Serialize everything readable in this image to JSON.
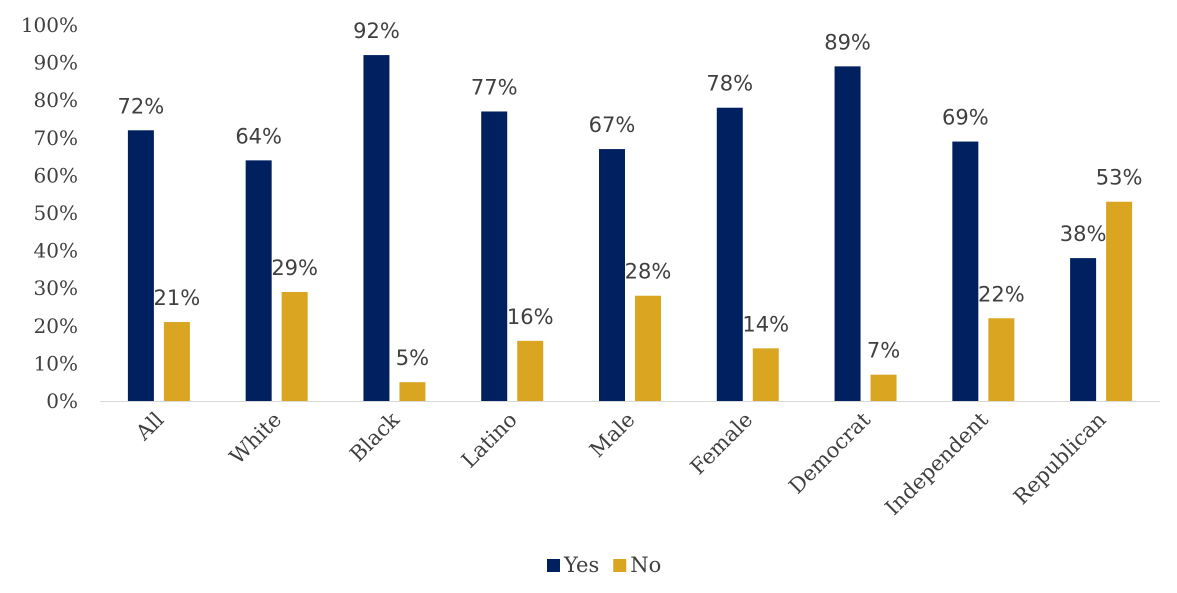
{
  "chart_data": {
    "type": "bar",
    "categories": [
      "All",
      "White",
      "Black",
      "Latino",
      "Male",
      "Female",
      "Democrat",
      "Independent",
      "Republican"
    ],
    "series": [
      {
        "name": "Yes",
        "color": "#002060",
        "values": [
          72,
          64,
          92,
          77,
          67,
          78,
          89,
          69,
          38
        ]
      },
      {
        "name": "No",
        "color": "#DAA520",
        "values": [
          21,
          29,
          5,
          16,
          28,
          14,
          7,
          22,
          53
        ]
      }
    ],
    "value_format": "percent",
    "ylim": [
      0,
      100
    ],
    "yticks": [
      "0%",
      "10%",
      "20%",
      "30%",
      "40%",
      "50%",
      "60%",
      "70%",
      "80%",
      "90%",
      "100%"
    ],
    "title": "",
    "xlabel": "",
    "ylabel": "",
    "grid": false,
    "legend_position": "bottom-center"
  }
}
